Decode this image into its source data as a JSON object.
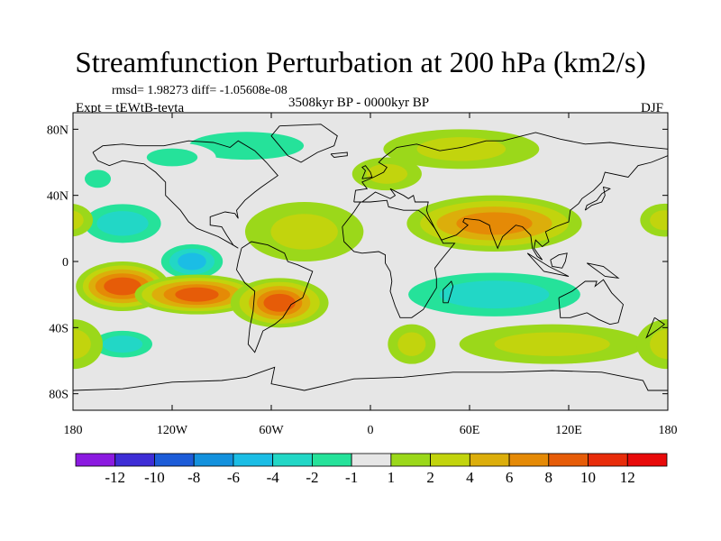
{
  "figure": {
    "title": "Streamfunction Perturbation at 200 hPa (km2/s)",
    "stats": "rmsd= 1.98273 diff= -1.05608e-08",
    "experiment": "Expt = tEWtB-tevta",
    "period": "3508kyr BP - 0000kyr BP",
    "season": "DJF"
  },
  "chart_data": {
    "type": "heatmap",
    "title": "Streamfunction Perturbation at 200 hPa (km2/s)",
    "projection": "cylindrical equidistant",
    "units": "km2/s",
    "lon_range": [
      -180,
      180
    ],
    "lat_range": [
      -90,
      90
    ],
    "x_ticks": [
      {
        "value": -180,
        "label": "180"
      },
      {
        "value": -120,
        "label": "120W"
      },
      {
        "value": -60,
        "label": "60W"
      },
      {
        "value": 0,
        "label": "0"
      },
      {
        "value": 60,
        "label": "60E"
      },
      {
        "value": 120,
        "label": "120E"
      },
      {
        "value": 180,
        "label": "180"
      }
    ],
    "y_ticks": [
      {
        "value": 80,
        "label": "80N"
      },
      {
        "value": 40,
        "label": "40N"
      },
      {
        "value": 0,
        "label": "0"
      },
      {
        "value": -40,
        "label": "40S"
      },
      {
        "value": -80,
        "label": "80S"
      }
    ],
    "colorbar": {
      "labels": [
        "-12",
        "-10",
        "-8",
        "-6",
        "-4",
        "-2",
        "-1",
        "1",
        "2",
        "4",
        "6",
        "8",
        "10",
        "12"
      ],
      "colors": [
        "#8b1ae0",
        "#3e2dd6",
        "#1c5cd8",
        "#1391dd",
        "#1bbde5",
        "#22d7c6",
        "#25e29a",
        "#e6e6e6",
        "#9bd81a",
        "#c2d40d",
        "#dcae0b",
        "#e58a06",
        "#e65c08",
        "#e82c0a",
        "#e80a0a"
      ]
    },
    "features": [
      {
        "name": "North Atlantic/Greenland low",
        "lon": -75,
        "lat": 70,
        "value": -2,
        "rx": 55,
        "ry": 14
      },
      {
        "name": "Arctic Canada low",
        "lon": -120,
        "lat": 63,
        "value": -3,
        "rx": 25,
        "ry": 9
      },
      {
        "name": "North Pacific low (west)",
        "lon": -165,
        "lat": 50,
        "value": -3,
        "rx": 14,
        "ry": 9
      },
      {
        "name": "North Pacific low",
        "lon": -150,
        "lat": 23,
        "value": -5,
        "rx": 32,
        "ry": 16
      },
      {
        "name": "Tropical East Pacific low",
        "lon": -108,
        "lat": 0,
        "value": -6,
        "rx": 22,
        "ry": 13
      },
      {
        "name": "Eurasia high",
        "lon": 55,
        "lat": 68,
        "value": 2,
        "rx": 45,
        "ry": 12
      },
      {
        "name": "Europe high",
        "lon": 10,
        "lat": 53,
        "value": 2,
        "rx": 22,
        "ry": 10
      },
      {
        "name": "South Asia high",
        "lon": 75,
        "lat": 23,
        "value": 6,
        "rx": 55,
        "ry": 17
      },
      {
        "name": "Central Pacific high (west)",
        "lon": 178,
        "lat": 25,
        "value": 2,
        "rx": 14,
        "ry": 10
      },
      {
        "name": "North Atlantic subtropical high",
        "lon": -40,
        "lat": 18,
        "value": 2,
        "rx": 35,
        "ry": 18
      },
      {
        "name": "South Pacific high",
        "lon": -150,
        "lat": -15,
        "value": 8,
        "rx": 30,
        "ry": 15
      },
      {
        "name": "Southeast Pacific high",
        "lon": -105,
        "lat": -20,
        "value": 8,
        "rx": 38,
        "ry": 12
      },
      {
        "name": "South America high",
        "lon": -55,
        "lat": -25,
        "value": 8,
        "rx": 28,
        "ry": 15
      },
      {
        "name": "Indian Ocean low",
        "lon": 75,
        "lat": -20,
        "value": -4,
        "rx": 75,
        "ry": 18
      },
      {
        "name": "South Pacific low",
        "lon": -150,
        "lat": -50,
        "value": -4,
        "rx": 25,
        "ry": 11
      },
      {
        "name": "Southern Ocean high (east)",
        "lon": 110,
        "lat": -50,
        "value": 2,
        "rx": 55,
        "ry": 12
      },
      {
        "name": "Southern Ocean high (date line)",
        "lon": 180,
        "lat": -50,
        "value": 2,
        "rx": 18,
        "ry": 15
      },
      {
        "name": "South Atlantic high",
        "lon": 25,
        "lat": -50,
        "value": 2,
        "rx": 15,
        "ry": 12
      }
    ]
  }
}
